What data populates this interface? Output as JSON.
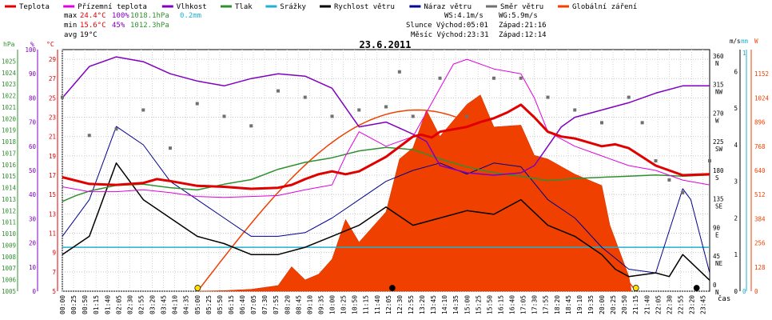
{
  "chart_data": {
    "type": "line",
    "title": "23.6.2011",
    "x_unit_label": "čas",
    "x_ticks": [
      "00:00",
      "00:25",
      "00:50",
      "01:15",
      "01:40",
      "02:05",
      "02:30",
      "02:55",
      "03:20",
      "03:45",
      "04:10",
      "04:35",
      "05:00",
      "05:25",
      "05:50",
      "06:15",
      "06:40",
      "07:05",
      "07:30",
      "07:55",
      "08:20",
      "08:45",
      "09:10",
      "09:35",
      "10:00",
      "10:25",
      "10:50",
      "11:15",
      "11:40",
      "12:05",
      "12:30",
      "12:55",
      "13:20",
      "13:45",
      "14:10",
      "14:35",
      "15:00",
      "15:25",
      "15:50",
      "16:15",
      "16:40",
      "17:05",
      "17:30",
      "17:55",
      "18:20",
      "18:45",
      "19:10",
      "19:35",
      "20:00",
      "20:25",
      "20:50",
      "21:15",
      "21:40",
      "22:05",
      "22:30",
      "22:55",
      "23:20",
      "23:45"
    ],
    "legend": [
      {
        "name": "Teplota",
        "color": "#e00000"
      },
      {
        "name": "Přízemní teplota",
        "color": "#e000e0"
      },
      {
        "name": "Vlhkost",
        "color": "#8000c0"
      },
      {
        "name": "Tlak",
        "color": "#309030"
      },
      {
        "name": "Srážky",
        "color": "#20b0d0"
      },
      {
        "name": "Rychlost větru",
        "color": "#000000"
      },
      {
        "name": "Náraz větru",
        "color": "#000090"
      },
      {
        "name": "Směr větru",
        "color": "#707070"
      },
      {
        "name": "Globální záření",
        "color": "#f04000"
      }
    ],
    "stats": {
      "max": {
        "label": "max",
        "temp": "24.4°C",
        "hum": "100%",
        "press": "1018.1hPa",
        "rain": "0.2mm"
      },
      "min": {
        "label": "min",
        "temp": "15.6°C",
        "hum": "45%",
        "press": "1012.3hPa"
      },
      "avg": {
        "label": "avg",
        "temp": "19°C"
      }
    },
    "info": {
      "ws": "WS:4.1m/s",
      "wg": "WG:5.9m/s",
      "sun": "Slunce Východ:05:01",
      "sunset": "Západ:21:16",
      "moon": "Měsíc Východ:23:31",
      "moonset": "Západ:12:14"
    },
    "axes": {
      "pressure": {
        "unit": "hPa",
        "min": 1005,
        "max": 1026,
        "ticks": [
          "1005",
          "1006",
          "1007",
          "1008",
          "1009",
          "1010",
          "1011",
          "1012",
          "1013",
          "1014",
          "1015",
          "1016",
          "1017",
          "1018",
          "1019",
          "1020",
          "1021",
          "1022",
          "1023",
          "1024",
          "1025"
        ]
      },
      "humidity": {
        "unit": "%",
        "min": 0,
        "max": 100,
        "ticks": [
          "0",
          "10",
          "20",
          "30",
          "40",
          "50",
          "60",
          "70",
          "80",
          "90",
          "100"
        ]
      },
      "temperature": {
        "unit": "°C",
        "min": 5,
        "max": 30,
        "ticks": [
          "5",
          "7",
          "9",
          "11",
          "13",
          "15",
          "17",
          "19",
          "21",
          "23",
          "25",
          "27",
          "29"
        ]
      },
      "wind_dir": {
        "unit": "",
        "ticks": [
          {
            "v": "0",
            "d": "N"
          },
          {
            "v": "45",
            "d": "NE"
          },
          {
            "v": "90",
            "d": "E"
          },
          {
            "v": "135",
            "d": "SE"
          },
          {
            "v": "180",
            "d": "S"
          },
          {
            "v": "225",
            "d": "SW"
          },
          {
            "v": "270",
            "d": "W"
          },
          {
            "v": "315",
            "d": "NW"
          },
          {
            "v": "360",
            "d": "N"
          }
        ]
      },
      "wind_speed": {
        "unit": "m/s",
        "min": 0,
        "max": 6,
        "ticks": [
          "0",
          "1",
          "2",
          "3",
          "4",
          "5",
          "6"
        ]
      },
      "rain": {
        "unit": "mm",
        "min": 0,
        "max": 1,
        "ticks": [
          "0",
          "1"
        ]
      },
      "radiation": {
        "unit": "W",
        "min": 0,
        "max": 1280,
        "ticks": [
          "0",
          "128",
          "256",
          "384",
          "512",
          "640",
          "768",
          "896",
          "1024",
          "1152"
        ]
      }
    },
    "series": {
      "temperature": [
        [
          0,
          16.8
        ],
        [
          1,
          16.1
        ],
        [
          2,
          16
        ],
        [
          3,
          16.2
        ],
        [
          3.5,
          16.6
        ],
        [
          4,
          16.4
        ],
        [
          5,
          15.9
        ],
        [
          6,
          15.8
        ],
        [
          7,
          15.6
        ],
        [
          8,
          15.7
        ],
        [
          8.5,
          16.0
        ],
        [
          9,
          16.6
        ],
        [
          9.5,
          17.1
        ],
        [
          10,
          17.4
        ],
        [
          10.5,
          17.1
        ],
        [
          11,
          17.4
        ],
        [
          12,
          18.9
        ],
        [
          13,
          21.0
        ],
        [
          13.3,
          21.2
        ],
        [
          13.7,
          20.9
        ],
        [
          14,
          21.5
        ],
        [
          15,
          22.0
        ],
        [
          15.5,
          22.5
        ],
        [
          16,
          22.9
        ],
        [
          16.5,
          23.5
        ],
        [
          17,
          24.3
        ],
        [
          17.5,
          23.0
        ],
        [
          18,
          21.5
        ],
        [
          18.5,
          21.0
        ],
        [
          19,
          20.8
        ],
        [
          20,
          20.0
        ],
        [
          20.5,
          20.2
        ],
        [
          21,
          19.8
        ],
        [
          22,
          18.0
        ],
        [
          22.5,
          17.5
        ],
        [
          23,
          17.0
        ],
        [
          24,
          17.1
        ]
      ],
      "ground_temperature": [
        [
          0,
          15.8
        ],
        [
          1,
          15.3
        ],
        [
          2,
          15.3
        ],
        [
          3,
          15.5
        ],
        [
          4,
          15.2
        ],
        [
          5,
          14.8
        ],
        [
          6,
          14.7
        ],
        [
          7,
          14.8
        ],
        [
          8,
          14.9
        ],
        [
          9,
          15.5
        ],
        [
          10,
          16.0
        ],
        [
          10.5,
          19.0
        ],
        [
          11,
          21.5
        ],
        [
          12,
          20.0
        ],
        [
          13,
          21.0
        ],
        [
          14,
          26.0
        ],
        [
          14.5,
          28.5
        ],
        [
          15,
          29.0
        ],
        [
          16,
          28.0
        ],
        [
          17,
          27.5
        ],
        [
          17.5,
          25.0
        ],
        [
          18,
          21.5
        ],
        [
          19,
          20.0
        ],
        [
          20,
          19.0
        ],
        [
          21,
          18.0
        ],
        [
          22,
          17.5
        ],
        [
          23,
          16.5
        ],
        [
          24,
          16.0
        ]
      ],
      "humidity": [
        [
          0,
          80
        ],
        [
          1,
          93
        ],
        [
          2,
          97
        ],
        [
          3,
          95
        ],
        [
          4,
          90
        ],
        [
          5,
          87
        ],
        [
          6,
          85
        ],
        [
          7,
          88
        ],
        [
          8,
          90
        ],
        [
          9,
          89
        ],
        [
          10,
          84
        ],
        [
          11,
          68
        ],
        [
          12,
          70
        ],
        [
          13,
          65
        ],
        [
          13.5,
          62
        ],
        [
          14,
          52
        ],
        [
          15,
          49
        ],
        [
          16,
          48
        ],
        [
          17,
          49
        ],
        [
          17.5,
          52
        ],
        [
          18,
          60
        ],
        [
          18.5,
          68
        ],
        [
          19,
          72
        ],
        [
          20,
          75
        ],
        [
          21,
          78
        ],
        [
          22,
          82
        ],
        [
          23,
          85
        ],
        [
          24,
          85
        ]
      ],
      "pressure": [
        [
          0,
          1012.8
        ],
        [
          0.5,
          1013.3
        ],
        [
          1,
          1013.7
        ],
        [
          2,
          1014.2
        ],
        [
          3,
          1014.3
        ],
        [
          4,
          1014.0
        ],
        [
          5,
          1013.8
        ],
        [
          6,
          1014.3
        ],
        [
          7,
          1014.7
        ],
        [
          8,
          1015.6
        ],
        [
          9,
          1016.2
        ],
        [
          10,
          1016.6
        ],
        [
          11,
          1017.2
        ],
        [
          12,
          1017.5
        ],
        [
          13,
          1017.3
        ],
        [
          14,
          1016.5
        ],
        [
          15,
          1015.8
        ],
        [
          16,
          1015.3
        ],
        [
          17,
          1015.0
        ],
        [
          18,
          1014.6
        ],
        [
          19,
          1014.8
        ],
        [
          20,
          1014.9
        ],
        [
          21,
          1015.0
        ],
        [
          22,
          1015.1
        ],
        [
          23,
          1015.0
        ],
        [
          24,
          1015.1
        ]
      ],
      "rain_mm": [
        [
          0,
          0.2
        ],
        [
          24,
          0.2
        ]
      ],
      "wind_speed": [
        [
          0,
          1.0
        ],
        [
          1,
          1.5
        ],
        [
          2,
          3.5
        ],
        [
          3,
          2.5
        ],
        [
          4,
          2.0
        ],
        [
          5,
          1.5
        ],
        [
          6,
          1.3
        ],
        [
          7,
          1.0
        ],
        [
          8,
          1.0
        ],
        [
          9,
          1.2
        ],
        [
          10,
          1.5
        ],
        [
          11,
          1.8
        ],
        [
          12,
          2.3
        ],
        [
          13,
          1.8
        ],
        [
          14,
          2.0
        ],
        [
          15,
          2.2
        ],
        [
          16,
          2.1
        ],
        [
          17,
          2.5
        ],
        [
          18,
          1.8
        ],
        [
          19,
          1.5
        ],
        [
          20,
          1.0
        ],
        [
          20.5,
          0.6
        ],
        [
          21,
          0.4
        ],
        [
          22,
          0.5
        ],
        [
          22.5,
          0.4
        ],
        [
          23,
          1.0
        ],
        [
          24,
          0.3
        ]
      ],
      "wind_gust": [
        [
          0,
          1.5
        ],
        [
          1,
          2.5
        ],
        [
          2,
          4.5
        ],
        [
          3,
          4.0
        ],
        [
          4,
          3.0
        ],
        [
          5,
          2.5
        ],
        [
          6,
          2.0
        ],
        [
          7,
          1.5
        ],
        [
          8,
          1.5
        ],
        [
          9,
          1.6
        ],
        [
          10,
          2.0
        ],
        [
          11,
          2.5
        ],
        [
          12,
          3.0
        ],
        [
          13,
          3.3
        ],
        [
          14,
          3.5
        ],
        [
          15,
          3.2
        ],
        [
          16,
          3.5
        ],
        [
          17,
          3.4
        ],
        [
          18,
          2.5
        ],
        [
          19,
          2.0
        ],
        [
          20,
          1.2
        ],
        [
          21,
          0.6
        ],
        [
          22,
          0.5
        ],
        [
          23,
          2.8
        ],
        [
          23.3,
          2.5
        ],
        [
          24,
          0.5
        ]
      ],
      "global_radiation": [
        [
          5.0,
          0
        ],
        [
          6,
          3
        ],
        [
          7,
          10
        ],
        [
          8,
          30
        ],
        [
          8.5,
          130
        ],
        [
          9,
          60
        ],
        [
          9.5,
          90
        ],
        [
          10,
          170
        ],
        [
          10.5,
          380
        ],
        [
          11,
          260
        ],
        [
          12,
          420
        ],
        [
          12.5,
          700
        ],
        [
          13,
          760
        ],
        [
          13.5,
          960
        ],
        [
          14,
          820
        ],
        [
          15,
          990
        ],
        [
          15.5,
          1040
        ],
        [
          16,
          870
        ],
        [
          17,
          880
        ],
        [
          17.5,
          720
        ],
        [
          18,
          700
        ],
        [
          19,
          620
        ],
        [
          20,
          560
        ],
        [
          20.3,
          350
        ],
        [
          21,
          80
        ],
        [
          21.1,
          0
        ]
      ],
      "wind_direction_deg": [
        [
          0,
          300
        ],
        [
          1,
          240
        ],
        [
          2,
          250
        ],
        [
          3,
          280
        ],
        [
          4,
          220
        ],
        [
          5,
          290
        ],
        [
          6,
          270
        ],
        [
          7,
          255
        ],
        [
          8,
          310
        ],
        [
          9,
          300
        ],
        [
          10,
          270
        ],
        [
          11,
          280
        ],
        [
          12,
          285
        ],
        [
          12.5,
          340
        ],
        [
          13,
          270
        ],
        [
          14,
          330
        ],
        [
          15,
          270
        ],
        [
          16,
          330
        ],
        [
          17,
          330
        ],
        [
          18,
          300
        ],
        [
          19,
          280
        ],
        [
          20,
          260
        ],
        [
          21,
          300
        ],
        [
          21.5,
          260
        ],
        [
          22,
          200
        ],
        [
          22.5,
          170
        ],
        [
          23,
          150
        ],
        [
          24,
          200
        ]
      ]
    },
    "events": {
      "sunrise": "05:01",
      "moonset": "12:14",
      "sunset": "21:16",
      "moonrise": "23:31"
    }
  }
}
